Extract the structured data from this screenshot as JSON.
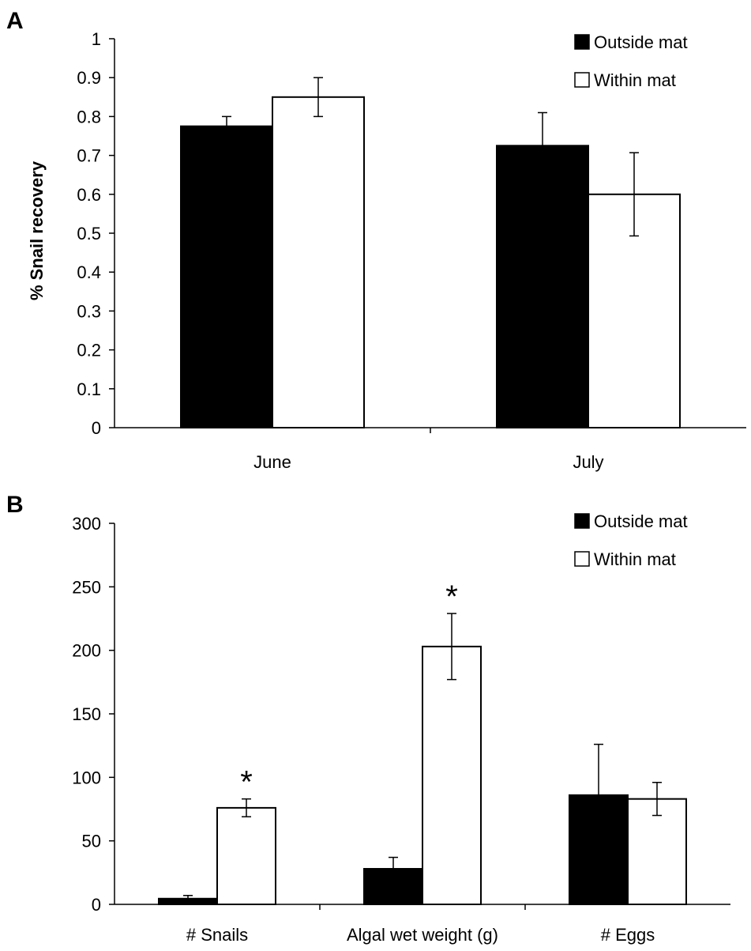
{
  "chart_data": [
    {
      "panel": "A",
      "type": "bar",
      "ylabel": "% Snail recovery",
      "ylim": [
        0,
        1
      ],
      "yticks": [
        "0",
        "0.1",
        "0.2",
        "0.3",
        "0.4",
        "0.5",
        "0.6",
        "0.7",
        "0.8",
        "0.9",
        "1"
      ],
      "categories": [
        "June",
        "July"
      ],
      "series": [
        {
          "name": "Outside mat",
          "color": "#000000",
          "values": [
            0.775,
            0.725
          ],
          "errors": [
            0.025,
            0.085
          ]
        },
        {
          "name": "Within mat",
          "color": "#ffffff",
          "values": [
            0.85,
            0.6
          ],
          "errors": [
            0.05,
            0.107
          ]
        }
      ],
      "legend_position": "top-right",
      "grid": false
    },
    {
      "panel": "B",
      "type": "bar",
      "ylabel": "",
      "ylim": [
        0,
        300
      ],
      "yticks": [
        "0",
        "50",
        "100",
        "150",
        "200",
        "250",
        "300"
      ],
      "categories": [
        "# Snails",
        "Algal wet weight (g)",
        "# Eggs"
      ],
      "series": [
        {
          "name": "Outside mat",
          "color": "#000000",
          "values": [
            4.5,
            28,
            86
          ],
          "errors": [
            2.5,
            9,
            40
          ]
        },
        {
          "name": "Within mat",
          "color": "#ffffff",
          "values": [
            76,
            203,
            83
          ],
          "errors": [
            7,
            26,
            13
          ]
        }
      ],
      "annotations": [
        {
          "text": "*",
          "category_index": 0
        },
        {
          "text": "*",
          "category_index": 1
        }
      ],
      "legend_position": "top-right",
      "grid": false
    }
  ]
}
